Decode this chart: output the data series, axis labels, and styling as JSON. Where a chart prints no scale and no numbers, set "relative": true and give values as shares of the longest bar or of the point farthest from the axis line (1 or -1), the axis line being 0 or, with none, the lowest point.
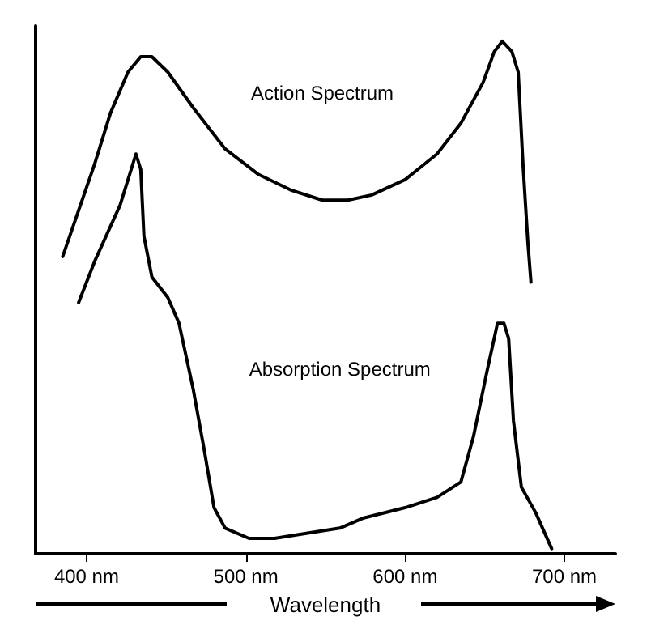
{
  "chart_data": {
    "type": "line",
    "relative": true,
    "xlabel": "Wavelength",
    "xlim": [
      368,
      732
    ],
    "xticks": [
      {
        "value": 400,
        "label": "400 nm"
      },
      {
        "value": 500,
        "label": "500 nm"
      },
      {
        "value": 600,
        "label": "600 nm"
      },
      {
        "value": 700,
        "label": "700 nm"
      }
    ],
    "grid": false,
    "legend": false,
    "marker": "none",
    "line_style": "solid",
    "tick_labels": "x",
    "series": [
      {
        "name": "Action Spectrum",
        "color": "#000000",
        "x": [
          385,
          395,
          405,
          415,
          426,
          434,
          441,
          451,
          467,
          487,
          508,
          528,
          548,
          564,
          579,
          600,
          620,
          635,
          649,
          656,
          661,
          667,
          671,
          674,
          677,
          679
        ],
        "values": [
          0.58,
          0.67,
          0.76,
          0.86,
          0.94,
          0.97,
          0.97,
          0.94,
          0.87,
          0.79,
          0.74,
          0.71,
          0.69,
          0.69,
          0.7,
          0.73,
          0.78,
          0.84,
          0.92,
          0.98,
          1,
          0.98,
          0.94,
          0.76,
          0.61,
          0.53
        ]
      },
      {
        "name": "Absorption Spectrum",
        "color": "#000000",
        "x": [
          395,
          405,
          421,
          431,
          434,
          436,
          441,
          451,
          458,
          467,
          474,
          480,
          487,
          502,
          518,
          538,
          559,
          574,
          600,
          620,
          635,
          643,
          651,
          658,
          662,
          665,
          668,
          673,
          682,
          692
        ],
        "values": [
          0.49,
          0.57,
          0.68,
          0.78,
          0.75,
          0.62,
          0.54,
          0.5,
          0.45,
          0.32,
          0.2,
          0.09,
          0.05,
          0.03,
          0.03,
          0.04,
          0.05,
          0.07,
          0.09,
          0.11,
          0.14,
          0.23,
          0.35,
          0.45,
          0.45,
          0.42,
          0.26,
          0.13,
          0.08,
          0.01
        ]
      }
    ]
  }
}
